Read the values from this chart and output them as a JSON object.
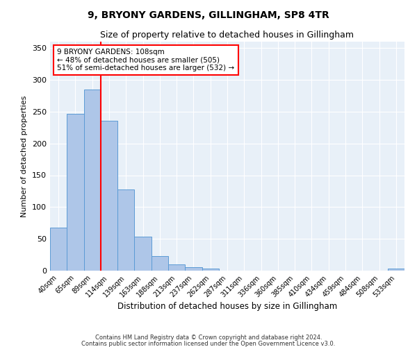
{
  "title": "9, BRYONY GARDENS, GILLINGHAM, SP8 4TR",
  "subtitle": "Size of property relative to detached houses in Gillingham",
  "xlabel": "Distribution of detached houses by size in Gillingham",
  "ylabel": "Number of detached properties",
  "footnote1": "Contains HM Land Registry data © Crown copyright and database right 2024.",
  "footnote2": "Contains public sector information licensed under the Open Government Licence v3.0.",
  "categories": [
    "40sqm",
    "65sqm",
    "89sqm",
    "114sqm",
    "139sqm",
    "163sqm",
    "188sqm",
    "213sqm",
    "237sqm",
    "262sqm",
    "287sqm",
    "311sqm",
    "336sqm",
    "360sqm",
    "385sqm",
    "410sqm",
    "434sqm",
    "459sqm",
    "484sqm",
    "508sqm",
    "533sqm"
  ],
  "values": [
    68,
    247,
    285,
    236,
    128,
    53,
    23,
    10,
    5,
    3,
    0,
    0,
    0,
    0,
    0,
    0,
    0,
    0,
    0,
    0,
    3
  ],
  "bar_color": "#aec6e8",
  "bar_edge_color": "#5b9bd5",
  "property_line_x": 2.5,
  "property_label": "9 BRYONY GARDENS: 108sqm",
  "annotation_line1": "← 48% of detached houses are smaller (505)",
  "annotation_line2": "51% of semi-detached houses are larger (532) →",
  "annotation_box_color": "white",
  "annotation_box_edge": "red",
  "line_color": "red",
  "background_color": "#e8f0f8",
  "ylim": [
    0,
    360
  ],
  "yticks": [
    0,
    50,
    100,
    150,
    200,
    250,
    300,
    350
  ]
}
